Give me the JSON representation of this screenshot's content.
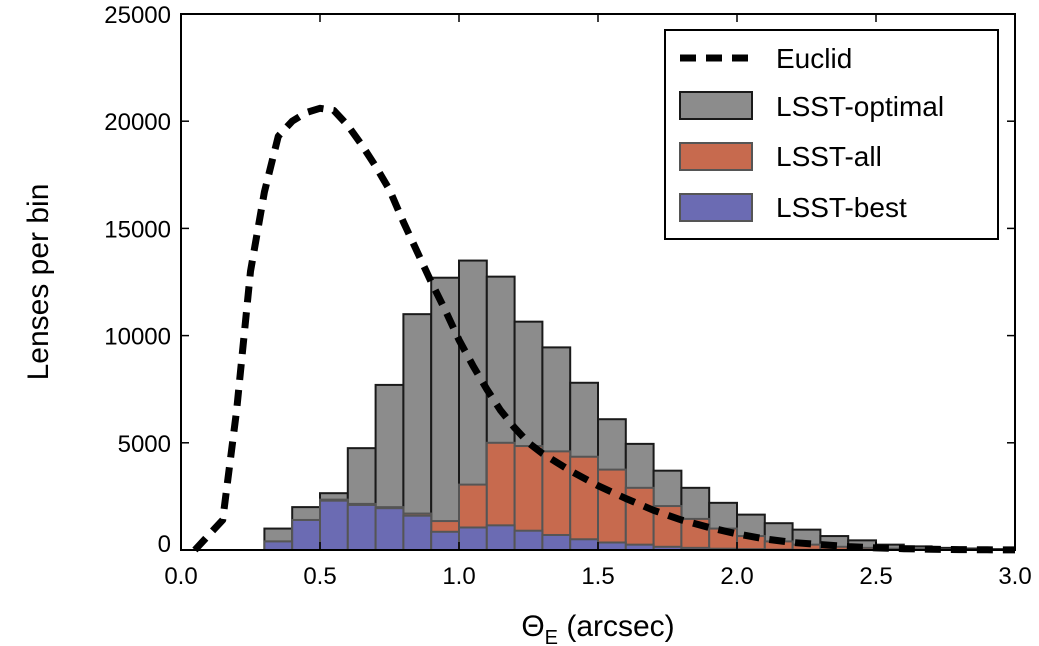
{
  "chart_data": {
    "type": "bar",
    "title": "",
    "xlabel_main": "Θ",
    "xlabel_sub": "E",
    "xlabel_rest": " (arcsec)",
    "ylabel": "Lenses per bin",
    "xlim": [
      0.0,
      3.0
    ],
    "ylim": [
      0,
      25000
    ],
    "xticks": [
      0.0,
      0.5,
      1.0,
      1.5,
      2.0,
      2.5,
      3.0
    ],
    "xtick_labels": [
      "0.0",
      "0.5",
      "1.0",
      "1.5",
      "2.0",
      "2.5",
      "3.0"
    ],
    "yticks": [
      0,
      5000,
      10000,
      15000,
      20000,
      25000
    ],
    "ytick_labels": [
      "0",
      "5000",
      "10000",
      "15000",
      "20000",
      "25000"
    ],
    "bin_width": 0.1,
    "bin_edges_start": [
      0.3,
      0.4,
      0.5,
      0.6,
      0.7,
      0.8,
      0.9,
      1.0,
      1.1,
      1.2,
      1.3,
      1.4,
      1.5,
      1.6,
      1.7,
      1.8,
      1.9,
      2.0,
      2.1,
      2.2,
      2.3,
      2.4,
      2.5,
      2.6,
      2.7,
      2.8,
      2.9
    ],
    "series": [
      {
        "name": "LSST-optimal",
        "color": "#8c8c8c",
        "edge": "#1a1a1a",
        "values": [
          1000,
          2000,
          2650,
          4750,
          7700,
          11000,
          12700,
          13500,
          12750,
          10650,
          9450,
          7800,
          6100,
          4950,
          3700,
          2900,
          2200,
          1650,
          1250,
          950,
          650,
          450,
          250,
          170,
          100,
          70,
          40
        ]
      },
      {
        "name": "LSST-all",
        "color": "#c76a4e",
        "edge": "#555555",
        "values": [
          400,
          1400,
          2350,
          2150,
          2000,
          1700,
          1350,
          3050,
          5000,
          4850,
          4600,
          4350,
          3750,
          2900,
          2050,
          1450,
          1000,
          650,
          400,
          250,
          150,
          100,
          60,
          40,
          20,
          10,
          5
        ]
      },
      {
        "name": "LSST-best",
        "color": "#6b6bb3",
        "edge": "#555555",
        "values": [
          400,
          1400,
          2300,
          2100,
          1950,
          1600,
          850,
          1050,
          1150,
          900,
          700,
          500,
          350,
          250,
          150,
          100,
          60,
          40,
          20,
          10,
          5,
          0,
          0,
          0,
          0,
          0,
          0
        ]
      },
      {
        "name": "Euclid",
        "type": "line",
        "style": "dashed",
        "color": "#000000",
        "x": [
          0.05,
          0.15,
          0.2,
          0.25,
          0.3,
          0.35,
          0.4,
          0.45,
          0.5,
          0.55,
          0.6,
          0.65,
          0.7,
          0.75,
          0.8,
          0.85,
          0.9,
          0.95,
          1.0,
          1.05,
          1.1,
          1.15,
          1.2,
          1.25,
          1.3,
          1.35,
          1.4,
          1.5,
          1.6,
          1.7,
          1.8,
          1.9,
          2.0,
          2.1,
          2.2,
          2.3,
          2.4,
          2.5,
          2.6,
          2.7,
          2.8,
          2.9,
          3.0
        ],
        "y": [
          0,
          1400,
          6500,
          13000,
          16700,
          19300,
          20000,
          20400,
          20600,
          20500,
          19800,
          18900,
          17900,
          16800,
          15300,
          13900,
          12500,
          11200,
          9800,
          8600,
          7500,
          6500,
          5700,
          5000,
          4500,
          4100,
          3700,
          3000,
          2400,
          1850,
          1400,
          1050,
          750,
          520,
          350,
          250,
          160,
          100,
          60,
          35,
          20,
          10,
          5
        ]
      }
    ],
    "legend": {
      "placement": "top-right",
      "entries": [
        "Euclid",
        "LSST-optimal",
        "LSST-all",
        "LSST-best"
      ]
    }
  }
}
